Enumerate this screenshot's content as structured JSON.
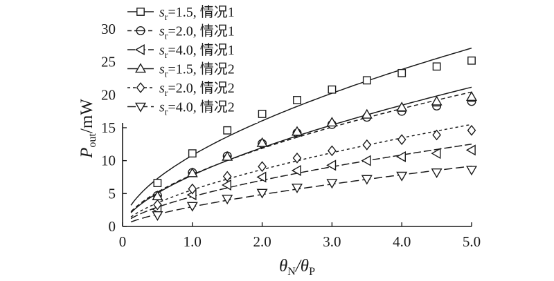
{
  "chart_data": {
    "type": "line",
    "xlabel": {
      "main": "θ",
      "sub1": "N",
      "mid": "/θ",
      "sub2": "P"
    },
    "ylabel": {
      "main": "P",
      "sub": "out",
      "unit": "/mW"
    },
    "xlim": [
      0,
      5.0
    ],
    "ylim": [
      0,
      30
    ],
    "xticks": [
      {
        "v": 0,
        "label": "0"
      },
      {
        "v": 1,
        "label": "1.0"
      },
      {
        "v": 2,
        "label": "2.0"
      },
      {
        "v": 3,
        "label": "3.0"
      },
      {
        "v": 4,
        "label": "4.0"
      },
      {
        "v": 5,
        "label": "5.0"
      }
    ],
    "yticks": [
      {
        "v": 0,
        "label": "0"
      },
      {
        "v": 5,
        "label": "5"
      },
      {
        "v": 10,
        "label": "10"
      },
      {
        "v": 15,
        "label": "15"
      },
      {
        "v": 20,
        "label": "20"
      },
      {
        "v": 25,
        "label": "25"
      },
      {
        "v": 30,
        "label": "30"
      }
    ],
    "grid": false,
    "legend_position": "top-left",
    "x": [
      0.5,
      1.0,
      1.5,
      2.0,
      2.5,
      3.0,
      3.5,
      4.0,
      4.5,
      5.0
    ],
    "series": [
      {
        "name": "s_r=1.5, 情况1",
        "legend": {
          "sym": "s",
          "sub": "r",
          "value": "=1.5, 情况1"
        },
        "marker": "square",
        "dash": "",
        "values": [
          6.6,
          11.1,
          14.6,
          17.1,
          19.2,
          20.8,
          22.2,
          23.3,
          24.3,
          25.2
        ]
      },
      {
        "name": "s_r=2.0, 情况1",
        "legend": {
          "sym": "s",
          "sub": "r",
          "value": "=2.0, 情况1"
        },
        "marker": "circle",
        "dash": "6 4",
        "values": [
          4.7,
          8.2,
          10.7,
          12.6,
          14.2,
          15.5,
          16.6,
          17.5,
          18.3,
          19.0
        ]
      },
      {
        "name": "s_r=4.0, 情况1",
        "legend": {
          "sym": "s",
          "sub": "r",
          "value": "=4.0, 情况1"
        },
        "marker": "triangle-left",
        "dash": "11 4",
        "values": [
          2.6,
          4.8,
          6.3,
          7.5,
          8.5,
          9.3,
          10.0,
          10.6,
          11.1,
          11.6
        ]
      },
      {
        "name": "s_r=1.5, 情况2",
        "legend": {
          "sym": "s",
          "sub": "r",
          "value": "=1.5, 情况2"
        },
        "marker": "triangle-up",
        "dash": "",
        "values": [
          4.6,
          8.1,
          10.6,
          12.7,
          14.4,
          15.8,
          17.0,
          18.1,
          19.0,
          19.7
        ]
      },
      {
        "name": "s_r=2.0, 情况2",
        "legend": {
          "sym": "s",
          "sub": "r",
          "value": "=2.0, 情况2"
        },
        "marker": "diamond",
        "dash": "4 4",
        "values": [
          3.3,
          5.7,
          7.6,
          9.1,
          10.4,
          11.5,
          12.4,
          13.2,
          13.9,
          14.6
        ]
      },
      {
        "name": "s_r=4.0, 情况2",
        "legend": {
          "sym": "s",
          "sub": "r",
          "value": "=4.0, 情况2"
        },
        "marker": "triangle-down",
        "dash": "12 5",
        "values": [
          1.7,
          3.1,
          4.2,
          5.1,
          5.9,
          6.6,
          7.2,
          7.7,
          8.2,
          8.6
        ]
      }
    ]
  }
}
